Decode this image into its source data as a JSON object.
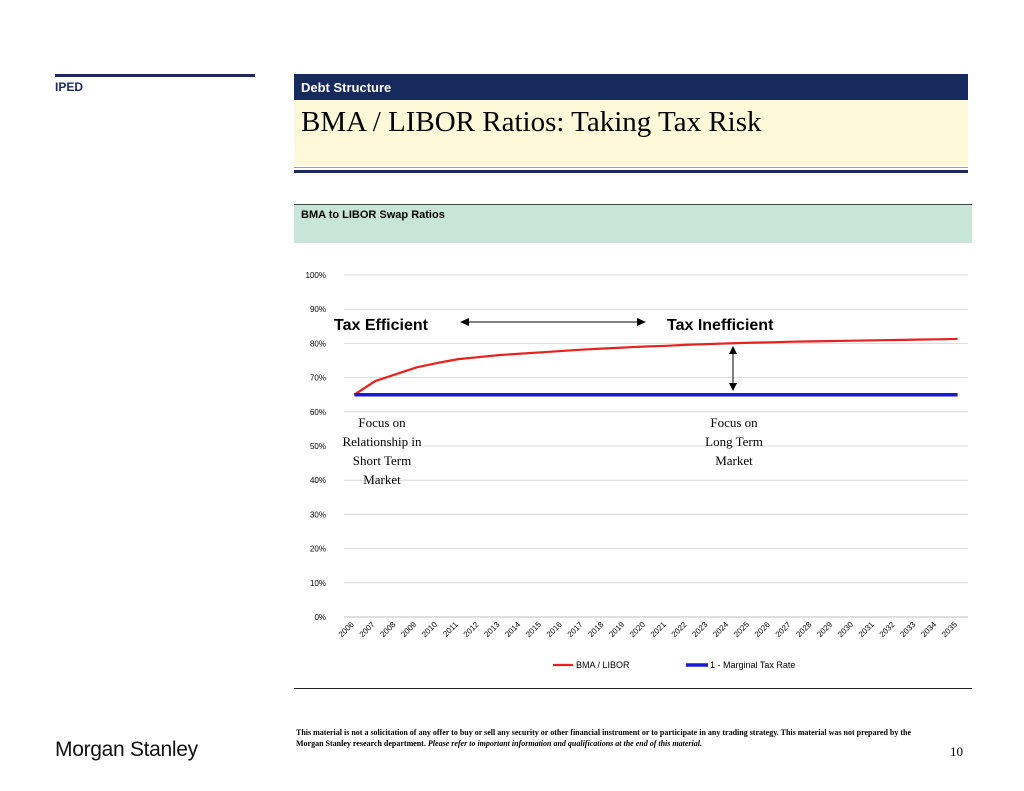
{
  "header": {
    "division": "IPED",
    "section": "Debt Structure",
    "title": "BMA / LIBOR Ratios: Taking Tax Risk"
  },
  "chart_header": "BMA to LIBOR Swap Ratios",
  "chart_data": {
    "type": "line",
    "title": "BMA to LIBOR Swap Ratios",
    "xlabel": "",
    "ylabel": "",
    "x": [
      "2006",
      "2007",
      "2008",
      "2009",
      "2010",
      "2011",
      "2012",
      "2013",
      "2014",
      "2015",
      "2016",
      "2017",
      "2018",
      "2019",
      "2020",
      "2021",
      "2022",
      "2023",
      "2024",
      "2025",
      "2026",
      "2027",
      "2028",
      "2029",
      "2030",
      "2031",
      "2032",
      "2033",
      "2034",
      "2035"
    ],
    "ylim": [
      0,
      100
    ],
    "yticks": [
      "0%",
      "10%",
      "20%",
      "30%",
      "40%",
      "50%",
      "60%",
      "70%",
      "80%",
      "90%",
      "100%"
    ],
    "grid": true,
    "legend_position": "bottom",
    "series": [
      {
        "name": "BMA / LIBOR",
        "color": "#e8211d",
        "values": [
          65.0,
          69.0,
          71.0,
          73.0,
          74.3,
          75.4,
          76.0,
          76.6,
          77.0,
          77.4,
          77.8,
          78.2,
          78.5,
          78.8,
          79.1,
          79.3,
          79.6,
          79.8,
          80.0,
          80.2,
          80.3,
          80.5,
          80.6,
          80.7,
          80.8,
          80.9,
          81.0,
          81.1,
          81.2,
          81.3
        ]
      },
      {
        "name": "1 - Marginal Tax Rate",
        "color": "#1a1ad6",
        "values": [
          65,
          65,
          65,
          65,
          65,
          65,
          65,
          65,
          65,
          65,
          65,
          65,
          65,
          65,
          65,
          65,
          65,
          65,
          65,
          65,
          65,
          65,
          65,
          65,
          65,
          65,
          65,
          65,
          65,
          65
        ]
      }
    ],
    "annotations": {
      "left_region": "Tax Efficient",
      "right_region": "Tax Inefficient",
      "left_note": [
        "Focus on",
        "Relationship in",
        "Short Term",
        "Market"
      ],
      "right_note": [
        "Focus on",
        "Long Term",
        "Market"
      ]
    }
  },
  "footer": {
    "disclaimer_bold": "This material is not a solicitation of any offer to buy or sell any security or other financial instrument or to participate in any trading strategy.  This material was not prepared by the Morgan Stanley research department.",
    "disclaimer_italic": "Please refer to important information and qualifications at the end of this material.",
    "logo": "Morgan Stanley",
    "page_number": "10"
  }
}
